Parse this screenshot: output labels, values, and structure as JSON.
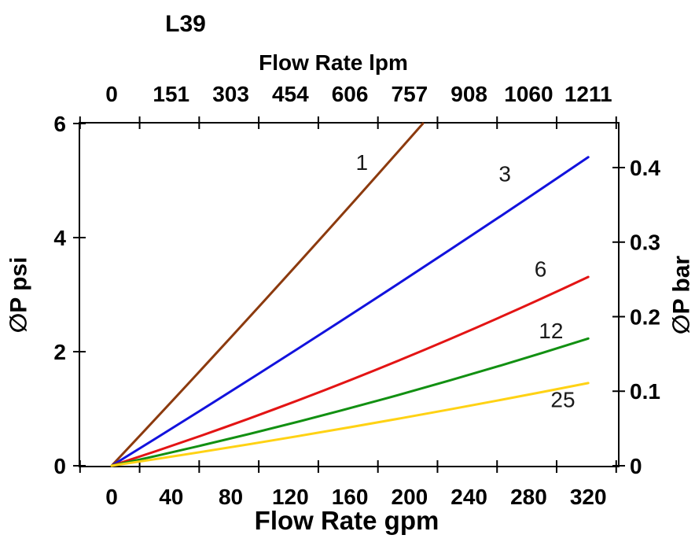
{
  "chart_data": {
    "type": "line",
    "title": "L39",
    "axes": {
      "top": {
        "label": "Flow Rate lpm",
        "tick_labels": [
          "0",
          "151",
          "303",
          "454",
          "606",
          "757",
          "908",
          "1060",
          "1211"
        ]
      },
      "bottom": {
        "label": "Flow Rate gpm",
        "tick_labels": [
          "0",
          "40",
          "80",
          "120",
          "160",
          "200",
          "240",
          "280",
          "320"
        ],
        "tick_values_gpm": [
          0,
          40,
          80,
          120,
          160,
          200,
          240,
          280,
          320
        ],
        "range_gpm": [
          -21.2,
          340.4
        ],
        "tick_step_gpm": 40
      },
      "left": {
        "label": "∅P psi",
        "tick_labels": [
          "0",
          "2",
          "4",
          "6"
        ],
        "tick_values_psi": [
          0,
          2,
          4,
          6
        ],
        "range_psi": [
          0,
          6.02
        ]
      },
      "right": {
        "label": "∅P bar",
        "tick_labels": [
          "0",
          "0.1",
          "0.2",
          "0.3",
          "0.4"
        ],
        "tick_values_bar": [
          0,
          0.1,
          0.2,
          0.3,
          0.4
        ]
      }
    },
    "series": [
      {
        "name": "1",
        "color": "#8C3A0E",
        "points_gpm_psi": [
          [
            0,
            0
          ],
          [
            104.5,
            2.95
          ],
          [
            209,
            6.0
          ]
        ]
      },
      {
        "name": "3",
        "color": "#1212DD",
        "points_gpm_psi": [
          [
            0,
            0
          ],
          [
            160,
            2.64
          ],
          [
            320,
            5.41
          ]
        ]
      },
      {
        "name": "6",
        "color": "#E31414",
        "points_gpm_psi": [
          [
            0,
            0
          ],
          [
            160,
            1.5
          ],
          [
            320,
            3.31
          ]
        ]
      },
      {
        "name": "12",
        "color": "#129012",
        "points_gpm_psi": [
          [
            0,
            0
          ],
          [
            160,
            1.01
          ],
          [
            320,
            2.23
          ]
        ]
      },
      {
        "name": "25",
        "color": "#FFD214",
        "points_gpm_psi": [
          [
            0,
            0
          ],
          [
            160,
            0.675
          ],
          [
            320,
            1.45
          ]
        ]
      }
    ],
    "series_labels": [
      {
        "text": "1",
        "gpm": 168,
        "psi": 5.32
      },
      {
        "text": "3",
        "gpm": 264,
        "psi": 5.12
      },
      {
        "text": "6",
        "gpm": 288,
        "psi": 3.45
      },
      {
        "text": "12",
        "gpm": 295,
        "psi": 2.37
      },
      {
        "text": "25",
        "gpm": 303,
        "psi": 1.16
      }
    ],
    "layout_hints": {
      "grid": "off",
      "legend": "inline-curve-labels",
      "frame": "closed-box-with-crossing-ticks"
    }
  }
}
